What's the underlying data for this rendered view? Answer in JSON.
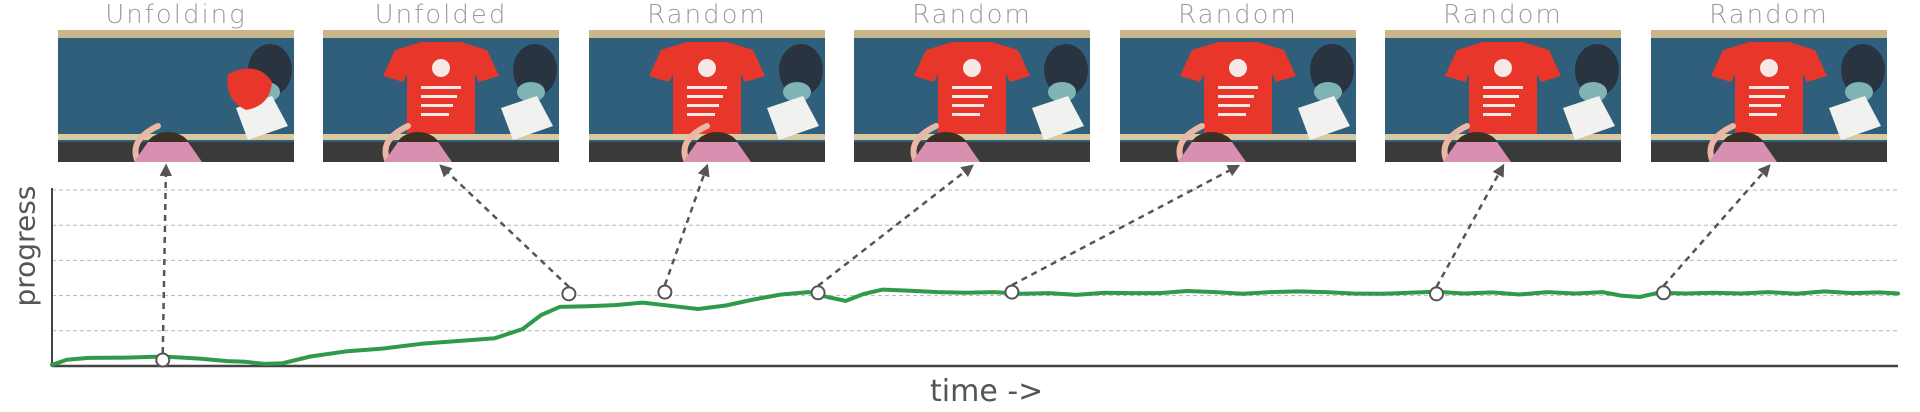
{
  "frames": [
    {
      "label": "Unfolding",
      "state": "unfolding"
    },
    {
      "label": "Unfolded",
      "state": "unfolded"
    },
    {
      "label": "Random",
      "state": "random"
    },
    {
      "label": "Random",
      "state": "random"
    },
    {
      "label": "Random",
      "state": "random"
    },
    {
      "label": "Random",
      "state": "random"
    },
    {
      "label": "Random",
      "state": "random"
    }
  ],
  "colors": {
    "line": "#2e9a4a",
    "arrow": "#555555",
    "grid": "#b5b5b5",
    "axis": "#444444",
    "table": "#2f5f7a",
    "shirt": "#e8372a",
    "label": "#9a9a9a"
  },
  "chart_data": {
    "type": "line",
    "xlabel": "time ->",
    "ylabel": "progress",
    "xlim": [
      0,
      100
    ],
    "ylim": [
      0,
      5
    ],
    "grid": true,
    "series": [
      {
        "values": [
          [
            0,
            0.03
          ],
          [
            0.8,
            0.18
          ],
          [
            2,
            0.23
          ],
          [
            4,
            0.24
          ],
          [
            6,
            0.27
          ],
          [
            8,
            0.21
          ],
          [
            9.5,
            0.14
          ],
          [
            10.5,
            0.12
          ],
          [
            11.5,
            0.06
          ],
          [
            12.5,
            0.08
          ],
          [
            14,
            0.27
          ],
          [
            16,
            0.42
          ],
          [
            18,
            0.5
          ],
          [
            20,
            0.63
          ],
          [
            22,
            0.71
          ],
          [
            24,
            0.79
          ],
          [
            25.5,
            1.05
          ],
          [
            26.5,
            1.45
          ],
          [
            27.5,
            1.68
          ],
          [
            29,
            1.7
          ],
          [
            30.5,
            1.73
          ],
          [
            32,
            1.8
          ],
          [
            33.5,
            1.71
          ],
          [
            35,
            1.62
          ],
          [
            36.5,
            1.72
          ],
          [
            38,
            1.89
          ],
          [
            39.5,
            2.03
          ],
          [
            41,
            2.1
          ],
          [
            42,
            1.96
          ],
          [
            43,
            1.85
          ],
          [
            44,
            2.05
          ],
          [
            45,
            2.17
          ],
          [
            46.5,
            2.14
          ],
          [
            48,
            2.1
          ],
          [
            49.5,
            2.08
          ],
          [
            51,
            2.1
          ],
          [
            52.5,
            2.05
          ],
          [
            54,
            2.07
          ],
          [
            55.5,
            2.02
          ],
          [
            57,
            2.08
          ],
          [
            58.5,
            2.07
          ],
          [
            60,
            2.07
          ],
          [
            61.5,
            2.13
          ],
          [
            63,
            2.1
          ],
          [
            64.5,
            2.05
          ],
          [
            66,
            2.1
          ],
          [
            67.5,
            2.12
          ],
          [
            69,
            2.1
          ],
          [
            70.5,
            2.06
          ],
          [
            72,
            2.05
          ],
          [
            73.5,
            2.08
          ],
          [
            75,
            2.11
          ],
          [
            76.5,
            2.06
          ],
          [
            78,
            2.09
          ],
          [
            79.5,
            2.03
          ],
          [
            81,
            2.1
          ],
          [
            82.5,
            2.06
          ],
          [
            84,
            2.1
          ],
          [
            85,
            2.0
          ],
          [
            86,
            1.96
          ],
          [
            87,
            2.08
          ],
          [
            88.5,
            2.06
          ],
          [
            90,
            2.08
          ],
          [
            91.5,
            2.06
          ],
          [
            93,
            2.1
          ],
          [
            94.5,
            2.05
          ],
          [
            96,
            2.12
          ],
          [
            97.5,
            2.07
          ],
          [
            99,
            2.09
          ],
          [
            100,
            2.06
          ]
        ]
      }
    ],
    "markers": [
      {
        "x": 6.0,
        "y": 0.17,
        "frame": 0
      },
      {
        "x": 28.0,
        "y": 2.05,
        "frame": 1
      },
      {
        "x": 33.2,
        "y": 2.1,
        "frame": 2
      },
      {
        "x": 41.5,
        "y": 2.08,
        "frame": 3
      },
      {
        "x": 52.0,
        "y": 2.1,
        "frame": 4
      },
      {
        "x": 75.0,
        "y": 2.05,
        "frame": 5
      },
      {
        "x": 87.3,
        "y": 2.08,
        "frame": 6
      }
    ]
  }
}
